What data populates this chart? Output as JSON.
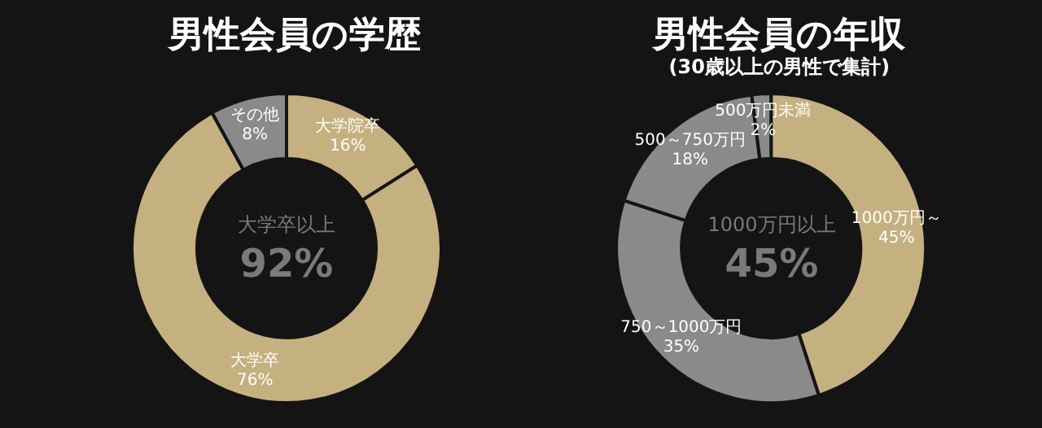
{
  "chart_data": [
    {
      "type": "donut",
      "title": "男性会員の学歴",
      "categories": [
        "大学院卒",
        "大学卒",
        "その他"
      ],
      "values": [
        16,
        76,
        8
      ],
      "value_labels": [
        "16%",
        "76%",
        "8%"
      ],
      "colors": [
        "#c5b07f",
        "#c5b07f",
        "#8a8a8a"
      ],
      "annotations": [
        "大学卒以上",
        "92%"
      ]
    },
    {
      "type": "donut",
      "title": "男性会員の年収",
      "subtitle": "(30歳以上の男性で集計)",
      "categories": [
        "1000万円～",
        "750～1000万円",
        "500～750万円",
        "500万円未満"
      ],
      "values": [
        45,
        35,
        18,
        2
      ],
      "value_labels": [
        "45%",
        "35%",
        "18%",
        "2%"
      ],
      "colors": [
        "#c5b07f",
        "#8a8a8a",
        "#8a8a8a",
        "#8a8a8a"
      ],
      "annotations": [
        "1000万円以上",
        "45%"
      ]
    }
  ]
}
